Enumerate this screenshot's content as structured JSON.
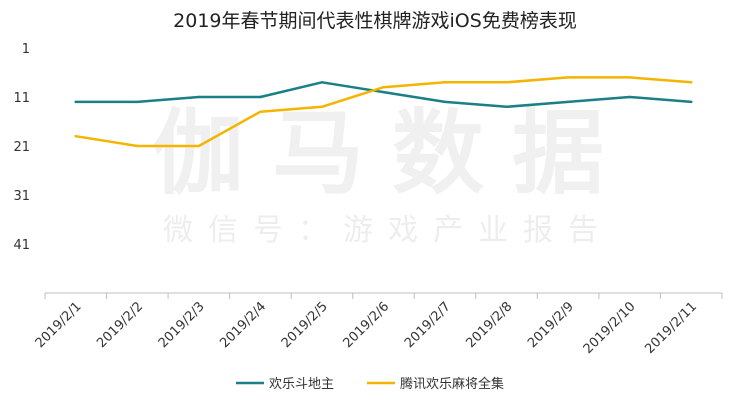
{
  "watermark": {
    "main": "伽马数据",
    "sub": "微信号：游戏产业报告"
  },
  "chart_data": {
    "type": "line",
    "title": "2019年春节期间代表性棋牌游戏iOS免费榜表现",
    "xlabel": "",
    "ylabel": "",
    "y_inverted": true,
    "ylim": [
      1,
      51
    ],
    "yticks": [
      1,
      11,
      21,
      31,
      41
    ],
    "grid": false,
    "legend": "bottom",
    "categories": [
      "2019/2/1",
      "2019/2/2",
      "2019/2/3",
      "2019/2/4",
      "2019/2/5",
      "2019/2/6",
      "2019/2/7",
      "2019/2/8",
      "2019/2/9",
      "2019/2/10",
      "2019/2/11"
    ],
    "series": [
      {
        "name": "欢乐斗地主",
        "color": "#1a7f86",
        "values": [
          12,
          12,
          11,
          11,
          8,
          10,
          12,
          13,
          12,
          11,
          12
        ]
      },
      {
        "name": "腾讯欢乐麻将全集",
        "color": "#f5b400",
        "values": [
          19,
          21,
          21,
          14,
          13,
          9,
          8,
          8,
          7,
          7,
          8
        ]
      }
    ]
  }
}
